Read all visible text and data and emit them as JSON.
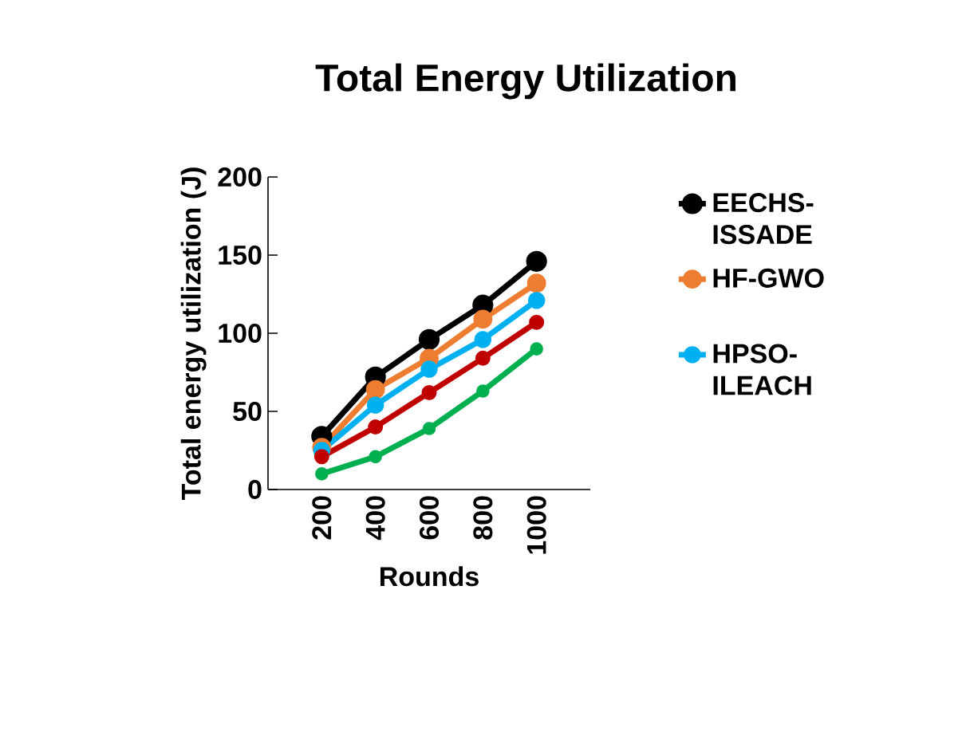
{
  "chart_data": {
    "type": "line",
    "title": "Total Energy Utilization",
    "xlabel": "Rounds",
    "ylabel": "Total energy utilization (J)",
    "categories": [
      "200",
      "400",
      "600",
      "800",
      "1000"
    ],
    "series": [
      {
        "name": "EECHS-ISSADE",
        "color": "#000000",
        "values": [
          34,
          72,
          96,
          118,
          146
        ]
      },
      {
        "name": "HF-GWO",
        "color": "#ed7d31",
        "values": [
          27,
          64,
          84,
          109,
          132
        ]
      },
      {
        "name": "HPSO-ILEACH",
        "color": "#00b0f0",
        "values": [
          25,
          54,
          77,
          96,
          121
        ]
      },
      {
        "color": "#c00000",
        "values": [
          21,
          40,
          62,
          84,
          107
        ]
      },
      {
        "color": "#00b050",
        "values": [
          10,
          21,
          39,
          63,
          90
        ]
      }
    ],
    "ylim": [
      0,
      200
    ],
    "yticks": [
      0,
      50,
      100,
      150,
      200
    ],
    "grid": false,
    "legend": "right",
    "marker": "circle",
    "line_style": "solid"
  }
}
